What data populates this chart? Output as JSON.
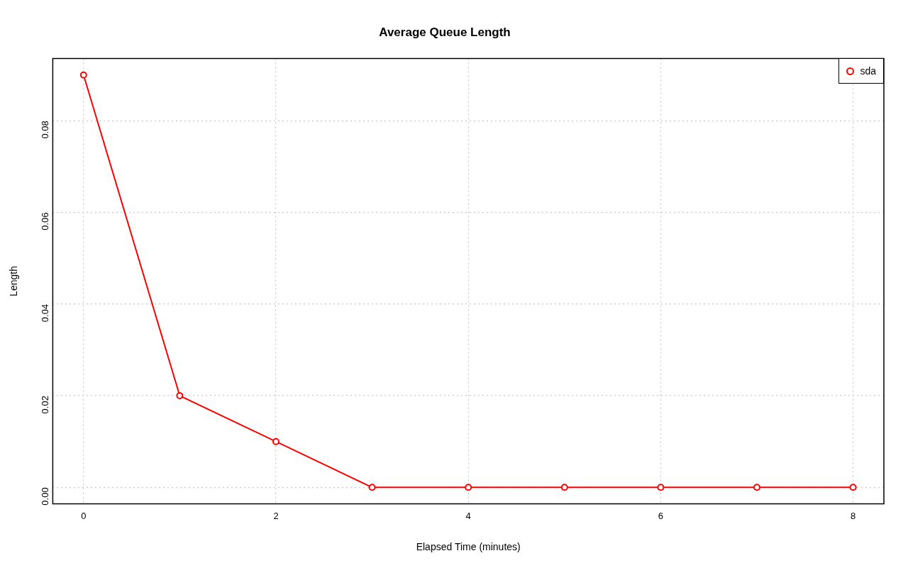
{
  "chart_data": {
    "type": "line",
    "title": "Average Queue Length",
    "xlabel": "Elapsed Time (minutes)",
    "ylabel": "Length",
    "x": [
      0,
      1,
      2,
      3,
      4,
      5,
      6,
      7,
      8
    ],
    "series": [
      {
        "name": "sda",
        "color": "#ff0000",
        "values": [
          0.09,
          0.02,
          0.01,
          0,
          0,
          0,
          0,
          0,
          0
        ]
      }
    ],
    "xlim": [
      -0.32,
      8.32
    ],
    "xticks": [
      0,
      2,
      4,
      6,
      8
    ],
    "ylim": [
      -0.0036,
      0.0936
    ],
    "yticks": [
      {
        "value": 0,
        "label": "0.00"
      },
      {
        "value": 0.02,
        "label": "0.02"
      },
      {
        "value": 0.04,
        "label": "0.04"
      },
      {
        "value": 0.06,
        "label": "0.06"
      },
      {
        "value": 0.08,
        "label": "0.08"
      }
    ],
    "grid": true,
    "legend": "top right",
    "marker": "circle",
    "line_style": "solid"
  }
}
